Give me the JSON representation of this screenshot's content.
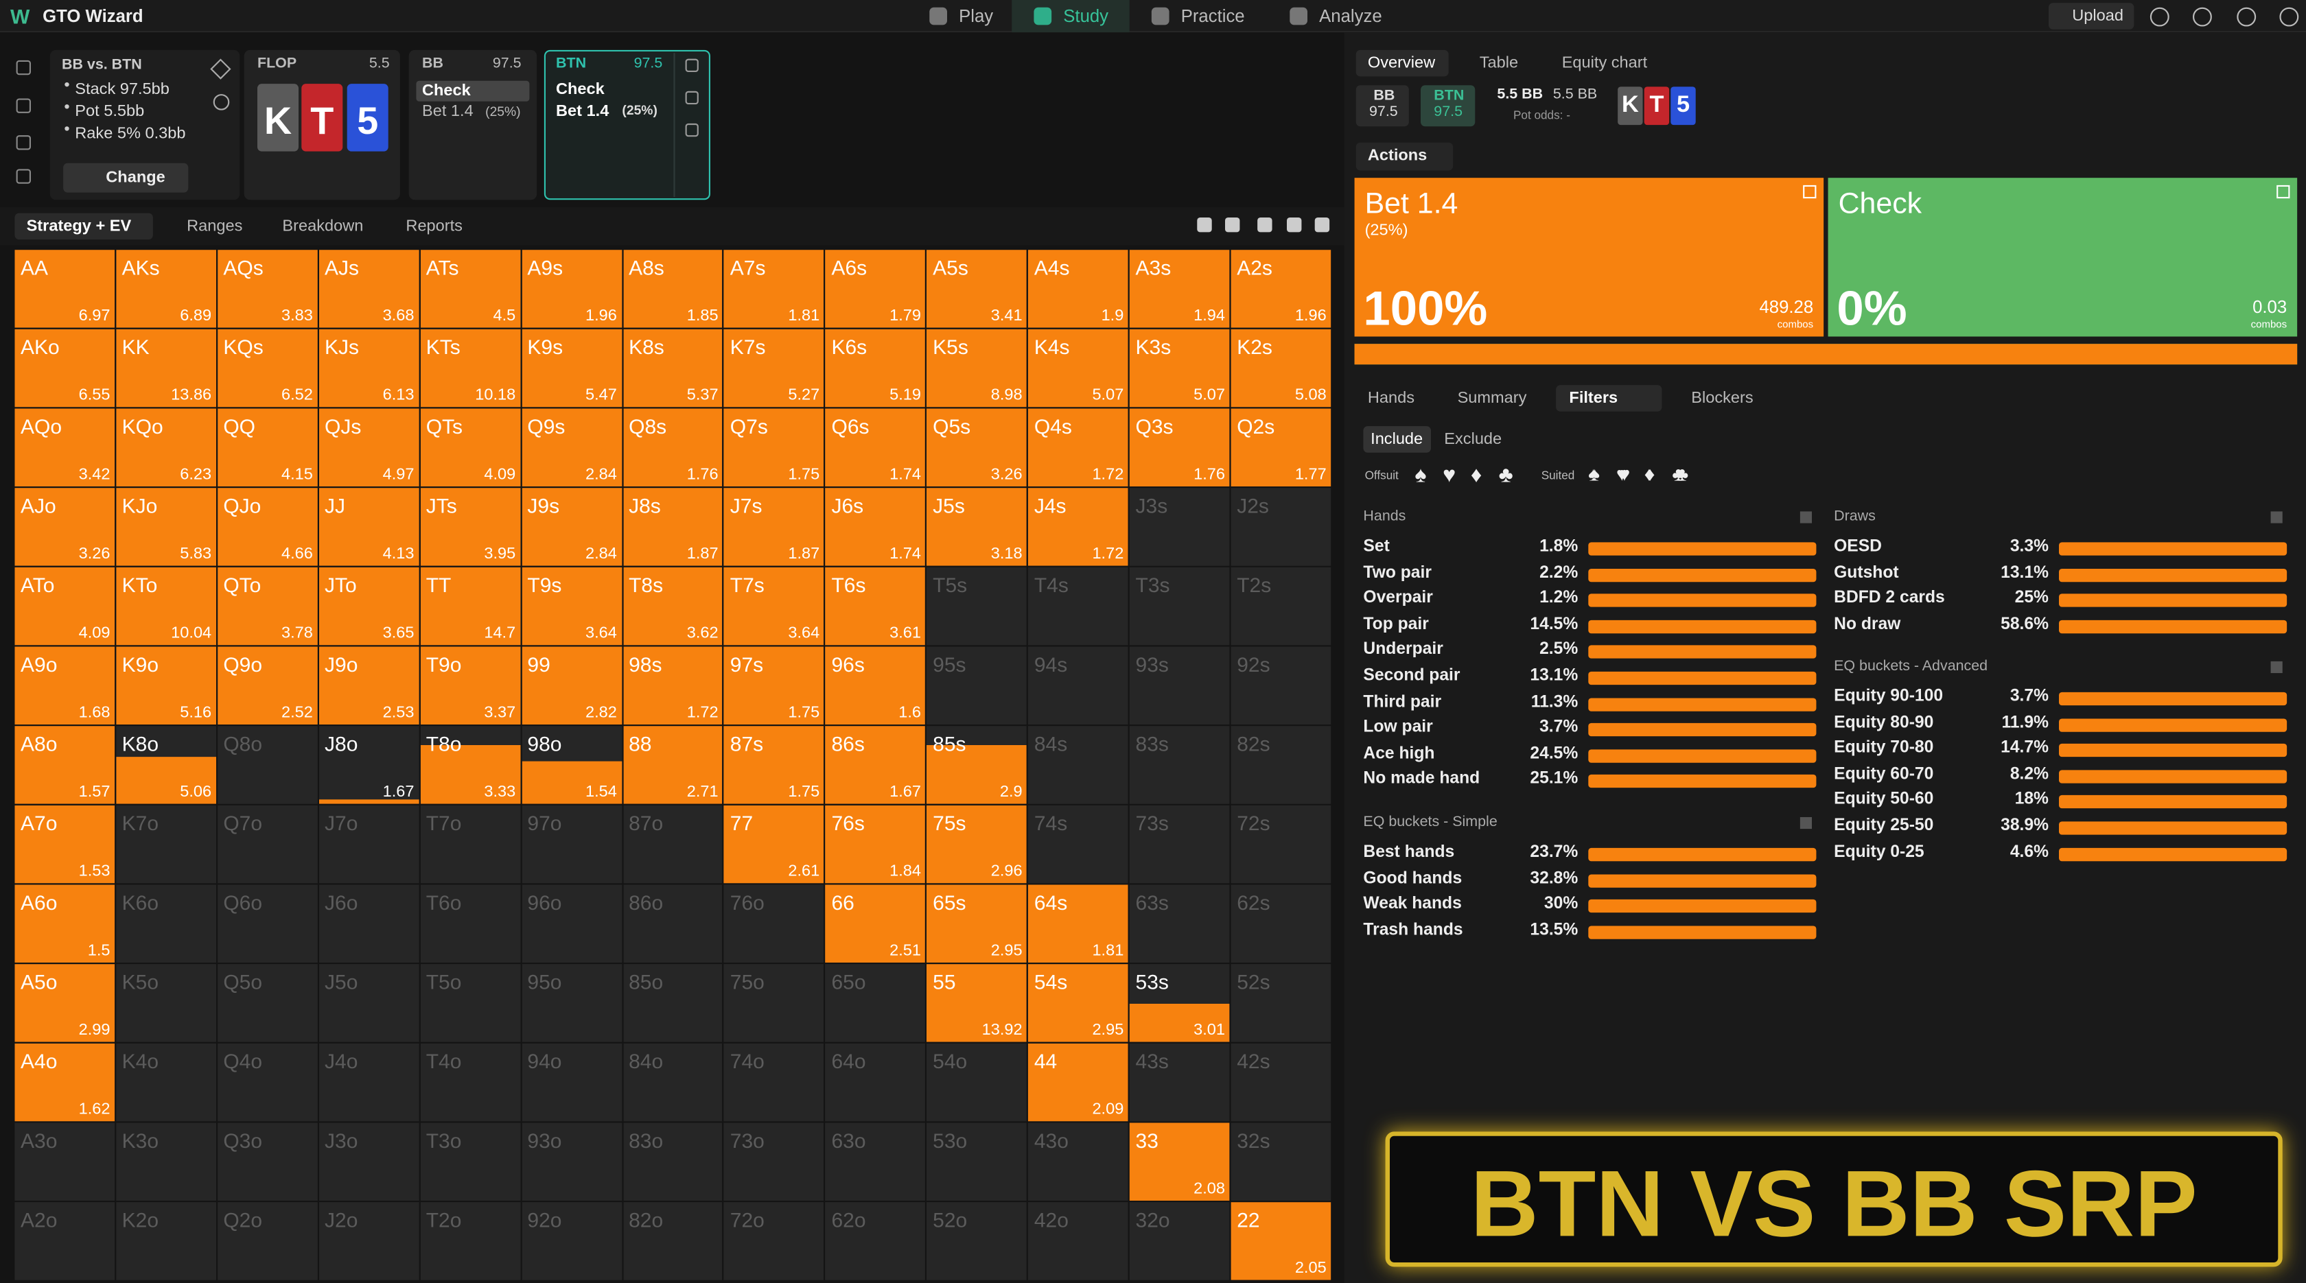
{
  "nav": {
    "logo": "W",
    "brand": "GTO Wizard",
    "items": [
      "Play",
      "Study",
      "Practice",
      "Analyze"
    ],
    "upload": "Upload"
  },
  "spot": {
    "title": "BB vs. BTN",
    "details": [
      "Stack 97.5bb",
      "Pot 5.5bb",
      "Rake 5% 0.3bb"
    ],
    "button": "Change"
  },
  "flop": {
    "label": "FLOP",
    "pot": "5.5",
    "cards": [
      "K",
      "T",
      "5"
    ]
  },
  "bb_node": {
    "player": "BB",
    "stack": "97.5",
    "action": "Check",
    "alt": "Bet 1.4",
    "alt_size": "(25%)"
  },
  "btn_node": {
    "player": "BTN",
    "stack": "97.5",
    "actions": [
      "Check",
      "Bet 1.4"
    ],
    "size": "(25%)"
  },
  "tabs": [
    "Strategy + EV",
    "Ranges",
    "Breakdown",
    "Reports"
  ],
  "grid": {
    "rows": [
      {
        "hands": [
          "AA",
          "AKs",
          "AQs",
          "AJs",
          "ATs",
          "A9s",
          "A8s",
          "A7s",
          "A6s",
          "A5s",
          "A4s",
          "A3s",
          "A2s"
        ],
        "ev": [
          6.97,
          6.89,
          3.83,
          3.68,
          4.5,
          1.96,
          1.85,
          1.81,
          1.79,
          3.41,
          1.9,
          1.94,
          1.96
        ],
        "weight": [
          1,
          1,
          1,
          1,
          1,
          1,
          1,
          1,
          1,
          1,
          1,
          1,
          1
        ]
      },
      {
        "hands": [
          "AKo",
          "KK",
          "KQs",
          "KJs",
          "KTs",
          "K9s",
          "K8s",
          "K7s",
          "K6s",
          "K5s",
          "K4s",
          "K3s",
          "K2s"
        ],
        "ev": [
          6.55,
          13.86,
          6.52,
          6.13,
          10.18,
          5.47,
          5.37,
          5.27,
          5.19,
          8.98,
          5.07,
          5.07,
          5.08
        ],
        "weight": [
          1,
          1,
          1,
          1,
          1,
          1,
          1,
          1,
          1,
          1,
          1,
          1,
          1
        ]
      },
      {
        "hands": [
          "AQo",
          "KQo",
          "QQ",
          "QJs",
          "QTs",
          "Q9s",
          "Q8s",
          "Q7s",
          "Q6s",
          "Q5s",
          "Q4s",
          "Q3s",
          "Q2s"
        ],
        "ev": [
          3.42,
          6.23,
          4.15,
          4.97,
          4.09,
          2.84,
          1.76,
          1.75,
          1.74,
          3.26,
          1.72,
          1.76,
          1.77
        ],
        "weight": [
          1,
          1,
          1,
          1,
          1,
          1,
          1,
          1,
          1,
          1,
          1,
          1,
          1
        ]
      },
      {
        "hands": [
          "AJo",
          "KJo",
          "QJo",
          "JJ",
          "JTs",
          "J9s",
          "J8s",
          "J7s",
          "J6s",
          "J5s",
          "J4s",
          "J3s",
          "J2s"
        ],
        "ev": [
          3.26,
          5.83,
          4.66,
          4.13,
          3.95,
          2.84,
          1.87,
          1.87,
          1.74,
          3.18,
          1.72,
          null,
          null
        ],
        "weight": [
          1,
          1,
          1,
          1,
          1,
          1,
          1,
          1,
          1,
          1,
          1,
          0,
          0
        ]
      },
      {
        "hands": [
          "ATo",
          "KTo",
          "QTo",
          "JTo",
          "TT",
          "T9s",
          "T8s",
          "T7s",
          "T6s",
          "T5s",
          "T4s",
          "T3s",
          "T2s"
        ],
        "ev": [
          4.09,
          10.04,
          3.78,
          3.65,
          14.7,
          3.64,
          3.62,
          3.64,
          3.61,
          null,
          null,
          null,
          null
        ],
        "weight": [
          1,
          1,
          1,
          1,
          1,
          1,
          1,
          1,
          1,
          0,
          0,
          0,
          0
        ]
      },
      {
        "hands": [
          "A9o",
          "K9o",
          "Q9o",
          "J9o",
          "T9o",
          "99",
          "98s",
          "97s",
          "96s",
          "95s",
          "94s",
          "93s",
          "92s"
        ],
        "ev": [
          1.68,
          5.16,
          2.52,
          2.53,
          3.37,
          2.82,
          1.72,
          1.75,
          1.6,
          null,
          null,
          null,
          null
        ],
        "weight": [
          1,
          1,
          1,
          1,
          1,
          1,
          1,
          1,
          1,
          0,
          0,
          0,
          0
        ]
      },
      {
        "hands": [
          "A8o",
          "K8o",
          "Q8o",
          "J8o",
          "T8o",
          "98o",
          "88",
          "87s",
          "86s",
          "85s",
          "84s",
          "83s",
          "82s"
        ],
        "ev": [
          1.57,
          5.06,
          null,
          1.67,
          3.33,
          1.54,
          2.71,
          1.75,
          1.67,
          2.9,
          null,
          null,
          null
        ],
        "weight": [
          1,
          0.6,
          0,
          0.05,
          0.75,
          0.55,
          1,
          1,
          1,
          0.75,
          0,
          0,
          0
        ]
      },
      {
        "hands": [
          "A7o",
          "K7o",
          "Q7o",
          "J7o",
          "T7o",
          "97o",
          "87o",
          "77",
          "76s",
          "75s",
          "74s",
          "73s",
          "72s"
        ],
        "ev": [
          1.53,
          null,
          null,
          null,
          null,
          null,
          null,
          2.61,
          1.84,
          2.96,
          null,
          null,
          null
        ],
        "weight": [
          1,
          0,
          0,
          0,
          0,
          0,
          0,
          1,
          1,
          1,
          0,
          0,
          0
        ]
      },
      {
        "hands": [
          "A6o",
          "K6o",
          "Q6o",
          "J6o",
          "T6o",
          "96o",
          "86o",
          "76o",
          "66",
          "65s",
          "64s",
          "63s",
          "62s"
        ],
        "ev": [
          1.5,
          null,
          null,
          null,
          null,
          null,
          null,
          null,
          2.51,
          2.95,
          1.81,
          null,
          null
        ],
        "weight": [
          1,
          0,
          0,
          0,
          0,
          0,
          0,
          0,
          1,
          1,
          1,
          0,
          0
        ]
      },
      {
        "hands": [
          "A5o",
          "K5o",
          "Q5o",
          "J5o",
          "T5o",
          "95o",
          "85o",
          "75o",
          "65o",
          "55",
          "54s",
          "53s",
          "52s"
        ],
        "ev": [
          2.99,
          null,
          null,
          null,
          null,
          null,
          null,
          null,
          null,
          13.92,
          2.95,
          3.01,
          null
        ],
        "weight": [
          1,
          0,
          0,
          0,
          0,
          0,
          0,
          0,
          0,
          1,
          1,
          0.5,
          0
        ]
      },
      {
        "hands": [
          "A4o",
          "K4o",
          "Q4o",
          "J4o",
          "T4o",
          "94o",
          "84o",
          "74o",
          "64o",
          "54o",
          "44",
          "43s",
          "42s"
        ],
        "ev": [
          1.62,
          null,
          null,
          null,
          null,
          null,
          null,
          null,
          null,
          null,
          2.09,
          null,
          null
        ],
        "weight": [
          1,
          0,
          0,
          0,
          0,
          0,
          0,
          0,
          0,
          0,
          1,
          0,
          0
        ]
      },
      {
        "hands": [
          "A3o",
          "K3o",
          "Q3o",
          "J3o",
          "T3o",
          "93o",
          "83o",
          "73o",
          "63o",
          "53o",
          "43o",
          "33",
          "32s"
        ],
        "ev": [
          null,
          null,
          null,
          null,
          null,
          null,
          null,
          null,
          null,
          null,
          null,
          2.08,
          null
        ],
        "weight": [
          0,
          0,
          0,
          0,
          0,
          0,
          0,
          0,
          0,
          0,
          0,
          1,
          0
        ]
      },
      {
        "hands": [
          "A2o",
          "K2o",
          "Q2o",
          "J2o",
          "T2o",
          "92o",
          "82o",
          "72o",
          "62o",
          "52o",
          "42o",
          "32o",
          "22"
        ],
        "ev": [
          null,
          null,
          null,
          null,
          null,
          null,
          null,
          null,
          null,
          null,
          null,
          null,
          2.05
        ],
        "weight": [
          0,
          0,
          0,
          0,
          0,
          0,
          0,
          0,
          0,
          0,
          0,
          0,
          1
        ]
      }
    ]
  },
  "overview": {
    "tabs": [
      "Overview",
      "Table",
      "Equity chart"
    ],
    "players": [
      {
        "name": "BB",
        "stack": "97.5"
      },
      {
        "name": "BTN",
        "stack": "97.5"
      }
    ],
    "pot": "5.5 BB",
    "pot2": "5.5 BB",
    "pot_odds": "Pot odds: -",
    "board": [
      "K",
      "T",
      "5"
    ]
  },
  "actions": {
    "label": "Actions",
    "items": [
      {
        "name": "Bet 1.4",
        "size": "(25%)",
        "frequency": 100,
        "frequency_label": "100%",
        "combos": "489.28",
        "combos_label": "combos"
      },
      {
        "name": "Check",
        "frequency": 0,
        "frequency_label": "0%",
        "combos": "0.03",
        "combos_label": "combos"
      }
    ]
  },
  "filters": {
    "tabs": [
      "Hands",
      "Summary",
      "Filters",
      "Blockers"
    ],
    "modes": [
      "Include",
      "Exclude"
    ],
    "offsuit_label": "Offsuit",
    "offsuit": [
      "♠",
      "♥",
      "♦",
      "♣"
    ],
    "suited_label": "Suited",
    "suited": [
      "♠♠",
      "♥♥",
      "♦♦",
      "♣♣"
    ],
    "groups": [
      {
        "title": "Hands",
        "items": [
          {
            "label": "Set",
            "pct": "1.8%"
          },
          {
            "label": "Two pair",
            "pct": "2.2%"
          },
          {
            "label": "Overpair",
            "pct": "1.2%"
          },
          {
            "label": "Top pair",
            "pct": "14.5%"
          },
          {
            "label": "Underpair",
            "pct": "2.5%"
          },
          {
            "label": "Second pair",
            "pct": "13.1%"
          },
          {
            "label": "Third pair",
            "pct": "11.3%"
          },
          {
            "label": "Low pair",
            "pct": "3.7%"
          },
          {
            "label": "Ace high",
            "pct": "24.5%"
          },
          {
            "label": "No made hand",
            "pct": "25.1%"
          }
        ]
      },
      {
        "title": "EQ buckets - Simple",
        "items": [
          {
            "label": "Best hands",
            "pct": "23.7%"
          },
          {
            "label": "Good hands",
            "pct": "32.8%"
          },
          {
            "label": "Weak hands",
            "pct": "30%"
          },
          {
            "label": "Trash hands",
            "pct": "13.5%"
          }
        ]
      },
      {
        "title": "Draws",
        "items": [
          {
            "label": "OESD",
            "pct": "3.3%"
          },
          {
            "label": "Gutshot",
            "pct": "13.1%"
          },
          {
            "label": "BDFD 2 cards",
            "pct": "25%"
          },
          {
            "label": "No draw",
            "pct": "58.6%"
          }
        ]
      },
      {
        "title": "EQ buckets - Advanced",
        "items": [
          {
            "label": "Equity 90-100",
            "pct": "3.7%"
          },
          {
            "label": "Equity 80-90",
            "pct": "11.9%"
          },
          {
            "label": "Equity 70-80",
            "pct": "14.7%"
          },
          {
            "label": "Equity 60-70",
            "pct": "8.2%"
          },
          {
            "label": "Equity 50-60",
            "pct": "18%"
          },
          {
            "label": "Equity 25-50",
            "pct": "38.9%"
          },
          {
            "label": "Equity 0-25",
            "pct": "4.6%"
          }
        ]
      }
    ]
  },
  "banner": "BTN VS BB SRP"
}
